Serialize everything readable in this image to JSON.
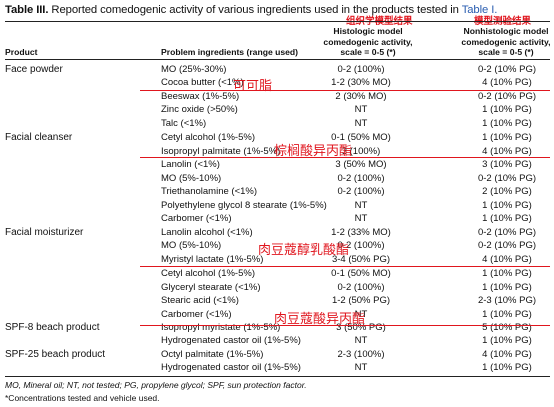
{
  "table": {
    "title_label": "Table III.",
    "title_text": "Reported comedogenic activity of various ingredients used in the products tested in",
    "title_link": "Table I.",
    "headers": {
      "product": "Product",
      "ingredient": "Problem ingredients (range used)",
      "histo": [
        "Histologic model",
        "comedogenic activity,",
        "scale = 0-5 (*)"
      ],
      "nonhisto": [
        "Nonhistologic model",
        "comedogenic activity,",
        "scale = 0-5 (*)"
      ]
    },
    "rows": [
      {
        "product": "Face powder",
        "ingredient": "MO (25%-30%)",
        "histo": "0-2 (100%)",
        "nonhisto": "0-2 (10% PG)"
      },
      {
        "product": "",
        "ingredient": "Cocoa butter (<1%)",
        "histo": "1-2 (30% MO)",
        "nonhisto": "4 (10% PG)"
      },
      {
        "product": "",
        "ingredient": "Beeswax (1%-5%)",
        "histo": "2 (30% MO)",
        "nonhisto": "0-2 (10% PG)"
      },
      {
        "product": "",
        "ingredient": "Zinc oxide (>50%)",
        "histo": "NT",
        "nonhisto": "1 (10% PG)"
      },
      {
        "product": "",
        "ingredient": "Talc (<1%)",
        "histo": "NT",
        "nonhisto": "1 (10% PG)"
      },
      {
        "product": "Facial cleanser",
        "ingredient": "Cetyl alcohol (1%-5%)",
        "histo": "0-1 (50% MO)",
        "nonhisto": "1 (10% PG)"
      },
      {
        "product": "",
        "ingredient": "Isopropyl palmitate (1%-5%)",
        "histo": "3 (100%)",
        "nonhisto": "4 (10% PG)"
      },
      {
        "product": "",
        "ingredient": "Lanolin (<1%)",
        "histo": "3 (50% MO)",
        "nonhisto": "3 (10% PG)"
      },
      {
        "product": "",
        "ingredient": "MO (5%-10%)",
        "histo": "0-2 (100%)",
        "nonhisto": "0-2 (10% PG)"
      },
      {
        "product": "",
        "ingredient": "Triethanolamine (<1%)",
        "histo": "0-2 (100%)",
        "nonhisto": "2 (10% PG)"
      },
      {
        "product": "",
        "ingredient": "Polyethylene glycol 8 stearate (1%-5%)",
        "histo": "NT",
        "nonhisto": "1 (10% PG)"
      },
      {
        "product": "",
        "ingredient": "Carbomer (<1%)",
        "histo": "NT",
        "nonhisto": "1 (10% PG)"
      },
      {
        "product": "Facial moisturizer",
        "ingredient": "Lanolin alcohol (<1%)",
        "histo": "1-2 (33% MO)",
        "nonhisto": "0-2 (10% PG)"
      },
      {
        "product": "",
        "ingredient": "MO (5%-10%)",
        "histo": "0-2 (100%)",
        "nonhisto": "0-2 (10% PG)"
      },
      {
        "product": "",
        "ingredient": "Myristyl lactate (1%-5%)",
        "histo": "3-4 (50% PG)",
        "nonhisto": "4 (10% PG)"
      },
      {
        "product": "",
        "ingredient": "Cetyl alcohol (1%-5%)",
        "histo": "0-1 (50% MO)",
        "nonhisto": "1 (10% PG)"
      },
      {
        "product": "",
        "ingredient": "Glyceryl stearate (<1%)",
        "histo": "0-2 (100%)",
        "nonhisto": "1 (10% PG)"
      },
      {
        "product": "",
        "ingredient": "Stearic acid (<1%)",
        "histo": "1-2 (50% PG)",
        "nonhisto": "2-3 (10% PG)"
      },
      {
        "product": "",
        "ingredient": "Carbomer (<1%)",
        "histo": "NT",
        "nonhisto": "1 (10% PG)"
      },
      {
        "product": "SPF-8 beach product",
        "ingredient": "Isopropyl myristate (1%-5%)",
        "histo": "3 (50% PG)",
        "nonhisto": "5 (10% PG)"
      },
      {
        "product": "",
        "ingredient": "Hydrogenated castor oil (1%-5%)",
        "histo": "NT",
        "nonhisto": "1 (10% PG)"
      },
      {
        "product": "SPF-25 beach product",
        "ingredient": "Octyl palmitate (1%-5%)",
        "histo": "2-3 (100%)",
        "nonhisto": "4 (10% PG)"
      },
      {
        "product": "",
        "ingredient": "Hydrogenated castor oil (1%-5%)",
        "histo": "NT",
        "nonhisto": "1 (10% PG)"
      }
    ],
    "footnotes": [
      "MO, Mineral oil; NT, not tested; PG, propylene glycol; SPF, sun protection factor.",
      "*Concentrations tested and vehicle used."
    ]
  },
  "annotations": {
    "histo_header": "组织学模型结果",
    "nonhisto_header": "模型测验结果",
    "cocoa_butter": "可可脂",
    "isopropyl_palmitate": "棕榈酸异丙酯",
    "myristyl_lactate": "肉豆蔻醇乳酸酯",
    "isopropyl_myristate": "肉豆蔻酸异丙酯"
  },
  "colors": {
    "annotation": "#e0161e",
    "link": "#2a5db0"
  }
}
